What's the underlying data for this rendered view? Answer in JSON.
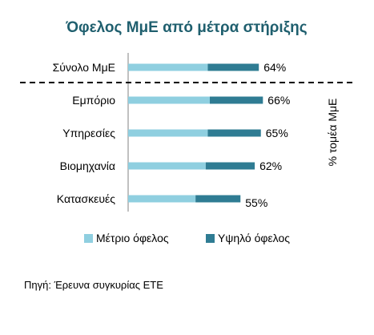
{
  "chart_data": {
    "type": "bar",
    "orientation": "horizontal",
    "stacked": true,
    "title": "Όφελος ΜμΕ από μέτρα στήριξης",
    "categories": [
      "Σύνολο ΜμΕ",
      "Εμπόριο",
      "Υπηρεσίες",
      "Βιομηχανία",
      "Κατασκευές"
    ],
    "series": [
      {
        "name": "Μέτριο όφελος",
        "values": [
          39,
          40,
          39,
          38,
          33
        ]
      },
      {
        "name": "Υψηλό όφελος",
        "values": [
          25,
          26,
          26,
          24,
          22
        ]
      }
    ],
    "totals": [
      64,
      66,
      65,
      62,
      55
    ],
    "data_labels": [
      "64%",
      "66%",
      "65%",
      "62%",
      "55%"
    ],
    "axis_label_right": "% τομέα ΜμΕ",
    "xlim": [
      0,
      100
    ],
    "legend_position": "bottom",
    "grid": false,
    "source": "Πηγή: Έρευνα συγκυρίας ΕΤΕ",
    "colors": {
      "title": "#1f5f6e",
      "Μέτριο όφελος": "#8fcfe0",
      "Υψηλό όφελος": "#2f7c93",
      "axis": "#808080",
      "divider": "#000000",
      "text": "#000000"
    }
  }
}
